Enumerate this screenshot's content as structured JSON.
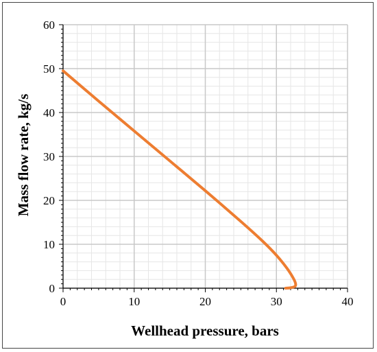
{
  "chart_data": {
    "type": "line",
    "title": "",
    "xlabel": "Wellhead pressure, bars",
    "ylabel": "Mass flow rate, kg/s",
    "xlim": [
      0,
      40
    ],
    "ylim": [
      0,
      60
    ],
    "x_ticks": [
      "0",
      "10",
      "20",
      "30",
      "40"
    ],
    "y_ticks": [
      "0",
      "10",
      "20",
      "30",
      "40",
      "50",
      "60"
    ],
    "major_grid": true,
    "minor_grid": true,
    "legend": "none",
    "series": [
      {
        "color": "#ED7D31",
        "points": [
          [
            0.0,
            49.5
          ],
          [
            5.0,
            42.6
          ],
          [
            10.0,
            35.8
          ],
          [
            15.0,
            29.0
          ],
          [
            20.0,
            22.2
          ],
          [
            25.0,
            15.2
          ],
          [
            28.0,
            10.8
          ],
          [
            30.0,
            7.5
          ],
          [
            31.5,
            4.5
          ],
          [
            32.4,
            2.2
          ],
          [
            32.7,
            1.0
          ],
          [
            32.6,
            0.4
          ],
          [
            32.0,
            0.1
          ],
          [
            31.3,
            0.0
          ]
        ]
      }
    ]
  }
}
